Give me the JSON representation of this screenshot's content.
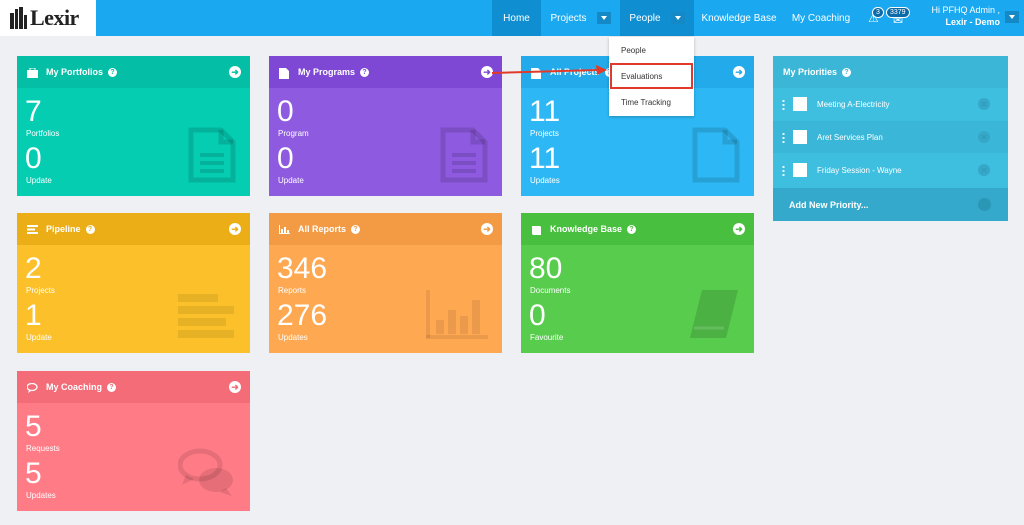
{
  "brand": {
    "name": "Lexir"
  },
  "nav": {
    "home": "Home",
    "projects": "Projects",
    "people": "People",
    "knowledge_base": "Knowledge Base",
    "my_coaching": "My Coaching"
  },
  "notifications": {
    "alerts_count": "3",
    "messages_count": "3379"
  },
  "user": {
    "greeting": "Hi PFHQ Admin ,",
    "org": "Lexir - Demo"
  },
  "people_dropdown": {
    "items": [
      "People",
      "Evaluations",
      "Time Tracking"
    ],
    "highlighted": "Evaluations"
  },
  "cards": [
    {
      "title": "My Portfolios",
      "color": "#05cdb2",
      "head_color": "#04bfa5",
      "icon": "briefcase-icon",
      "value1": "7",
      "label1": "Portfolios",
      "value2": "0",
      "label2": "Update",
      "deco": "document-icon"
    },
    {
      "title": "My Programs",
      "color": "#8e5ae0",
      "head_color": "#7e48d4",
      "icon": "document-icon",
      "value1": "0",
      "label1": "Program",
      "value2": "0",
      "label2": "Update",
      "deco": "document-icon"
    },
    {
      "title": "All Projects",
      "color": "#2db8f5",
      "head_color": "#22aaea",
      "icon": "document-icon",
      "value1": "11",
      "label1": "Projects",
      "value2": "11",
      "label2": "Updates",
      "deco": "blank-document-icon"
    },
    {
      "title": "Pipeline",
      "color": "#fbc02a",
      "head_color": "#ecae16",
      "icon": "list-icon",
      "value1": "2",
      "label1": "Projects",
      "value2": "1",
      "label2": "Update",
      "deco": "list-bars-icon"
    },
    {
      "title": "All Reports",
      "color": "#ffa852",
      "head_color": "#f39a45",
      "icon": "bar-chart-icon",
      "value1": "346",
      "label1": "Reports",
      "value2": "276",
      "label2": "Updates",
      "deco": "bar-chart-icon"
    },
    {
      "title": "Knowledge Base",
      "color": "#57cc4d",
      "head_color": "#48bf3e",
      "icon": "book-icon",
      "value1": "80",
      "label1": "Documents",
      "value2": "0",
      "label2": "Favourite",
      "deco": "book-icon"
    },
    {
      "title": "My Coaching",
      "color": "#ff7b86",
      "head_color": "#f36c78",
      "icon": "chat-icon",
      "value1": "5",
      "label1": "Requests",
      "value2": "5",
      "label2": "Updates",
      "deco": "chat-bubbles-icon"
    }
  ],
  "priorities": {
    "title": "My Priorities",
    "items": [
      "Meeting A-Electricity",
      "Aret Services Plan",
      "Friday Session - Wayne"
    ],
    "add_label": "Add New Priority..."
  }
}
